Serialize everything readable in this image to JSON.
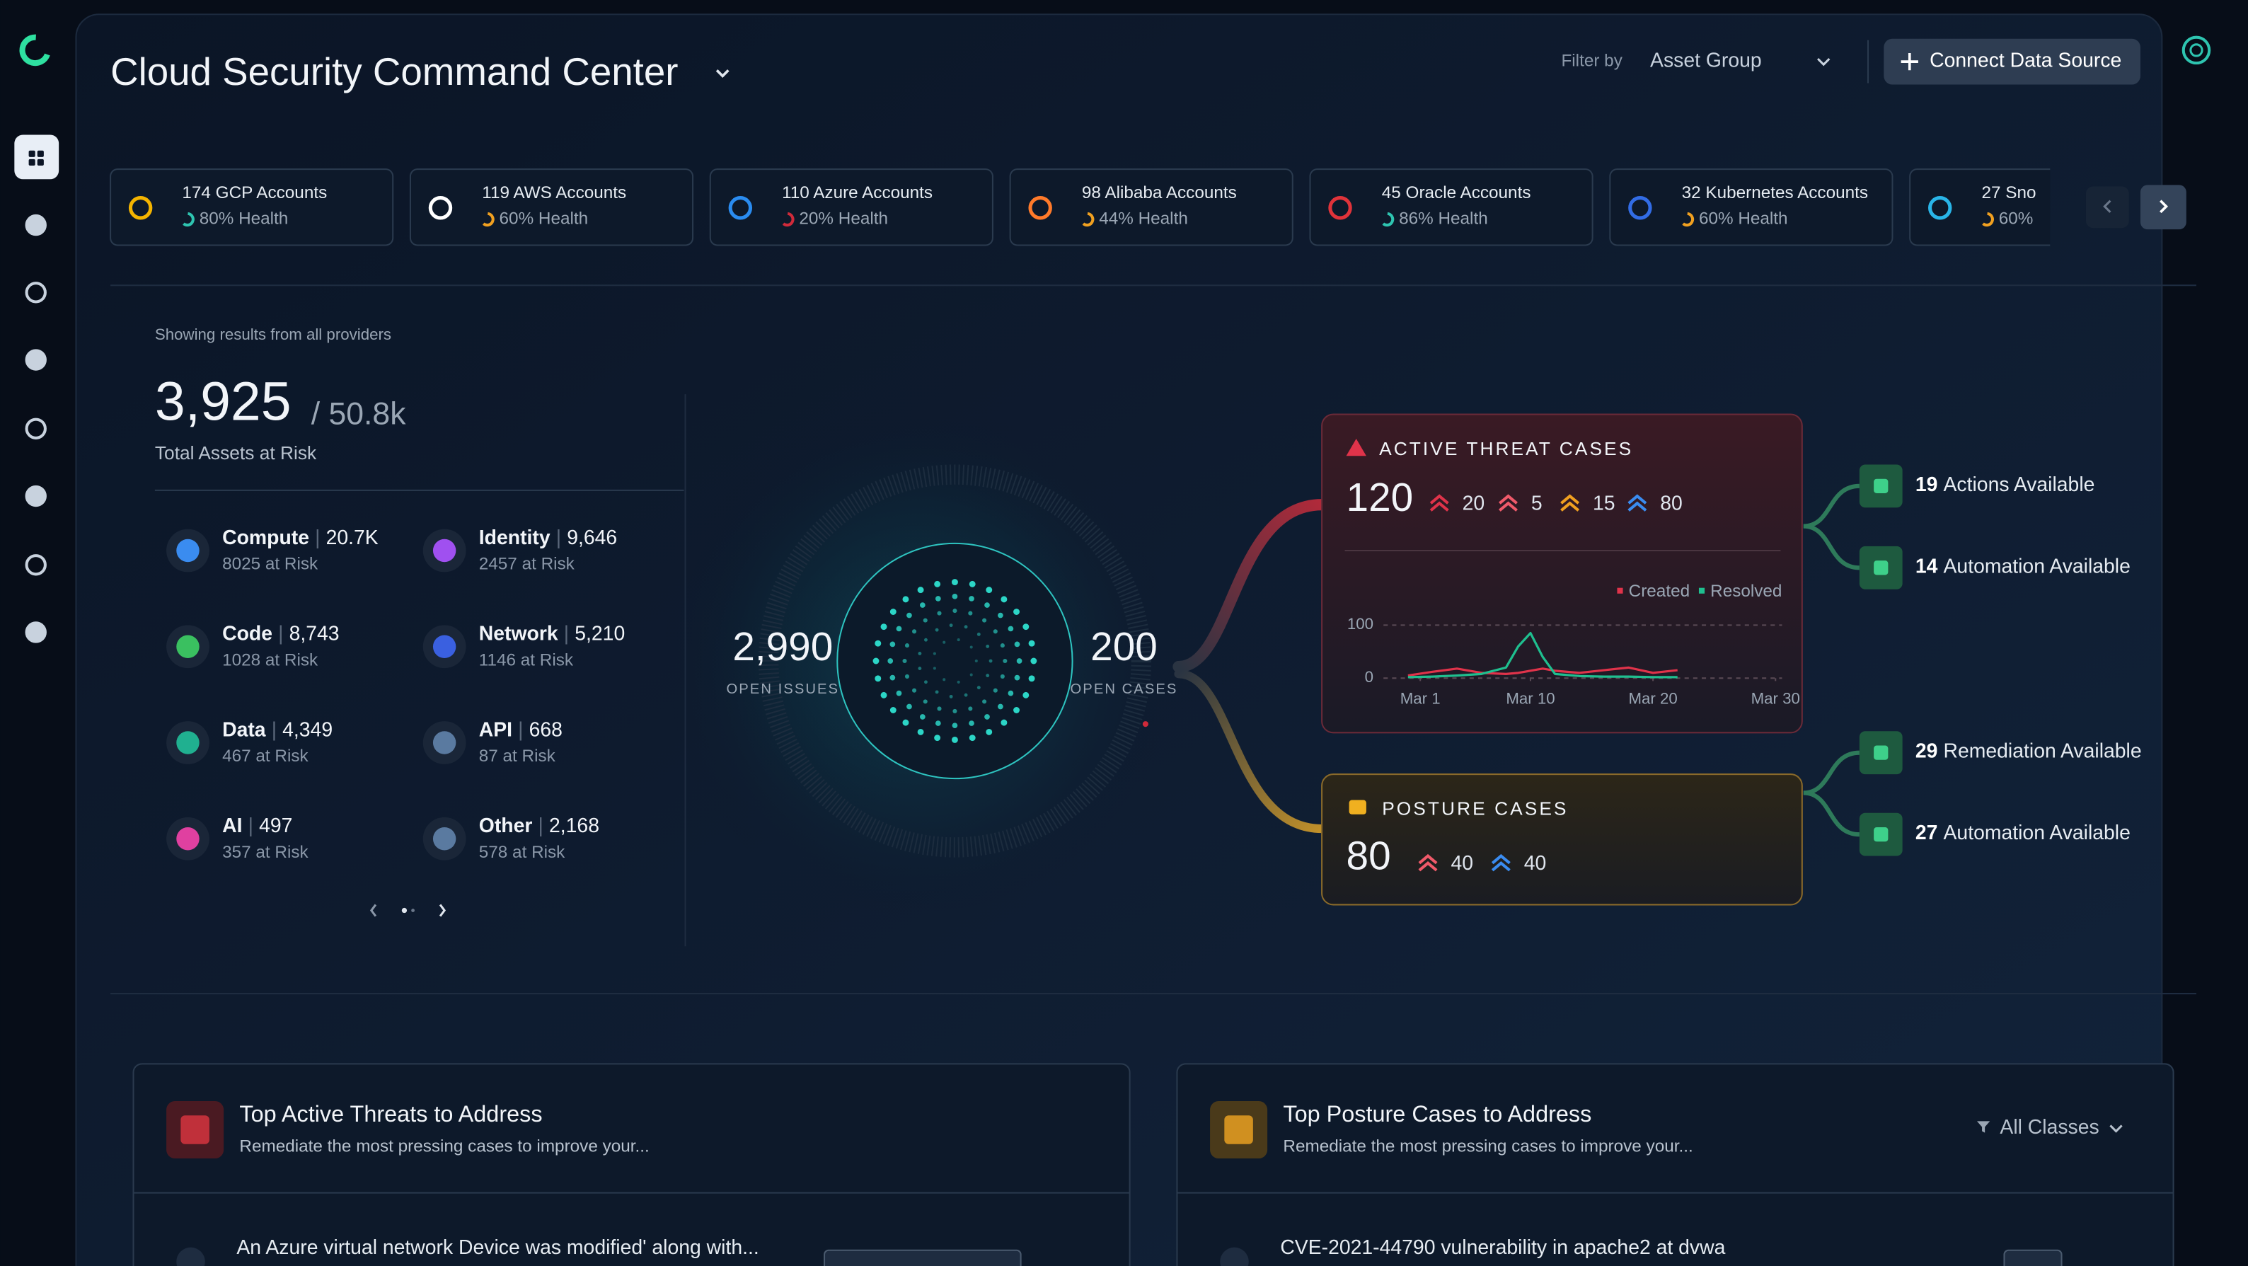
{
  "header": {
    "title": "Cloud Security Command Center",
    "filter_label": "Filter by",
    "filter_value": "Asset Group",
    "connect_button": "Connect Data Source"
  },
  "accounts": [
    {
      "label": "174 GCP Accounts",
      "health": "80% Health"
    },
    {
      "label": "119 AWS Accounts",
      "health": "60% Health"
    },
    {
      "label": "110 Azure Accounts",
      "health": "20% Health"
    },
    {
      "label": "98 Alibaba Accounts",
      "health": "44% Health"
    },
    {
      "label": "45 Oracle Accounts",
      "health": "86% Health"
    },
    {
      "label": "32 Kubernetes Accounts",
      "health": "60% Health"
    },
    {
      "label": "27 Sno",
      "health": "60%"
    }
  ],
  "summary": {
    "caption": "Showing results from all providers",
    "total": "3,925",
    "denominator": "/ 50.8k",
    "label": "Total Assets at Risk"
  },
  "categories": [
    {
      "name": "Compute",
      "count": "20.7K",
      "risk": "8025 at Risk"
    },
    {
      "name": "Identity",
      "count": "9,646",
      "risk": "2457 at Risk"
    },
    {
      "name": "Code",
      "count": "8,743",
      "risk": "1028 at Risk"
    },
    {
      "name": "Network",
      "count": "5,210",
      "risk": "1146 at Risk"
    },
    {
      "name": "Data",
      "count": "4,349",
      "risk": "467 at Risk"
    },
    {
      "name": "API",
      "count": "668",
      "risk": "87 at Risk"
    },
    {
      "name": "AI",
      "count": "497",
      "risk": "357 at Risk"
    },
    {
      "name": "Other",
      "count": "2,168",
      "risk": "578 at Risk"
    }
  ],
  "center": {
    "open_issues": "2,990",
    "open_issues_label": "OPEN ISSUES",
    "open_cases": "200",
    "open_cases_label": "OPEN CASES"
  },
  "threat_cases": {
    "title": "ACTIVE THREAT CASES",
    "total": "120",
    "severity": [
      "20",
      "5",
      "15",
      "80"
    ],
    "chart": {
      "type": "line",
      "x": [
        0,
        2,
        4,
        6,
        8,
        9,
        10,
        11,
        12,
        14,
        16,
        18,
        20,
        22
      ],
      "series": [
        {
          "name": "Created",
          "color": "#e0334a",
          "values": [
            5,
            12,
            18,
            10,
            8,
            10,
            14,
            18,
            14,
            10,
            15,
            20,
            10,
            15
          ]
        },
        {
          "name": "Resolved",
          "color": "#1fbf8f",
          "values": [
            2,
            3,
            5,
            8,
            20,
            60,
            85,
            40,
            8,
            4,
            3,
            3,
            2,
            2
          ]
        }
      ],
      "xlim": [
        -2,
        31
      ],
      "ylim": [
        0,
        100
      ],
      "yticks": [
        0,
        100
      ],
      "xticks": [
        {
          "value": 1,
          "label": "Mar 1"
        },
        {
          "value": 10,
          "label": "Mar 10"
        },
        {
          "value": 20,
          "label": "Mar 20"
        },
        {
          "value": 30,
          "label": "Mar 30"
        }
      ]
    }
  },
  "posture_cases": {
    "title": "POSTURE CASES",
    "total": "80",
    "severity": [
      "40",
      "40"
    ]
  },
  "threat_actions": [
    {
      "count": "19",
      "label": "Actions Available"
    },
    {
      "count": "14",
      "label": "Automation Available"
    }
  ],
  "posture_actions": [
    {
      "count": "29",
      "label": "Remediation Available"
    },
    {
      "count": "27",
      "label": "Automation Available"
    }
  ],
  "panels": [
    {
      "title": "Top Active Threats to Address",
      "subtitle": "Remediate the most pressing cases to improve your...",
      "first_row": "An Azure virtual network Device was modified' along with..."
    },
    {
      "title": "Top Posture Cases to Address",
      "subtitle": "Remediate the most pressing cases to improve your...",
      "filter": "All Classes",
      "first_row": "CVE-2021-44790 vulnerability in apache2 at dvwa"
    }
  ]
}
